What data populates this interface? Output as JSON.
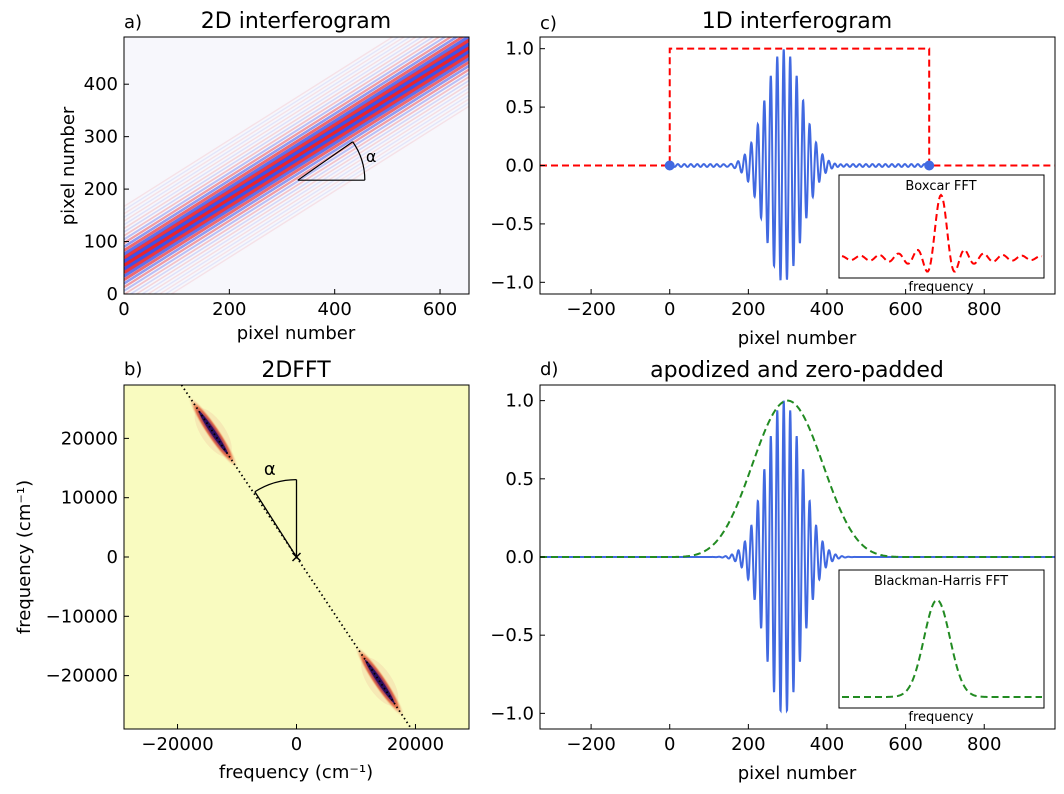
{
  "colors": {
    "signal": "#4169e1",
    "boxcar": "#ff0000",
    "apod": "#228b22",
    "fringe_red": "#e8232d",
    "fringe_blue": "#3c4ee6",
    "fft_bg": "#f9fbc0",
    "fft_peak": "#2a0e5e"
  },
  "chart_data": [
    {
      "panel_label": "a)",
      "type": "heatmap",
      "title": "2D interferogram",
      "xlabel": "pixel number",
      "ylabel": "pixel number",
      "xlim": [
        0,
        655
      ],
      "ylim": [
        0,
        490
      ],
      "xticks": [
        0,
        200,
        400,
        600
      ],
      "yticks": [
        0,
        100,
        200,
        300,
        400
      ],
      "fringe_band": {
        "x": [
          0,
          655
        ],
        "center_y": [
          55,
          470
        ]
      },
      "angle_label": "α",
      "angle_vertex": [
        330,
        217
      ]
    },
    {
      "panel_label": "c)",
      "type": "line",
      "title": "1D interferogram",
      "xlabel": "pixel number",
      "ylabel": "",
      "xlim": [
        -330,
        980
      ],
      "ylim": [
        -1.1,
        1.1
      ],
      "xticks": [
        -200,
        0,
        200,
        400,
        600,
        800
      ],
      "yticks": [
        -1.0,
        -0.5,
        0.0,
        0.5,
        1.0
      ],
      "series": [
        {
          "type": "line",
          "color": "signal",
          "x_range": [
            0,
            660
          ],
          "center": 290
        },
        {
          "type": "dashed-line",
          "color": "boxcar",
          "x": [
            -330,
            0,
            0,
            660,
            660,
            980
          ],
          "y": [
            0,
            0,
            1,
            1,
            0,
            0
          ]
        },
        {
          "type": "points",
          "color": "signal",
          "x": [
            0,
            660
          ],
          "y": [
            0,
            0
          ]
        }
      ],
      "inset": {
        "title": "Boxcar FFT",
        "xlabel": "frequency"
      }
    },
    {
      "panel_label": "b)",
      "type": "heatmap",
      "title": "2DFFT",
      "xlabel": "frequency (cm⁻¹)",
      "ylabel": "frequency (cm⁻¹)",
      "xlim": [
        -29000,
        29000
      ],
      "ylim": [
        -29000,
        29000
      ],
      "xticks": [
        -20000,
        0,
        20000
      ],
      "yticks": [
        -20000,
        -10000,
        0,
        10000,
        20000
      ],
      "xtick_labels": [
        "−20000",
        "0",
        "20000"
      ],
      "ytick_labels": [
        "−20000",
        "−10000",
        "0",
        "10000",
        "20000"
      ],
      "peaks": [
        [
          -14000,
          21000
        ],
        [
          14000,
          -21000
        ]
      ],
      "line_slope": -1.5,
      "angle_label": "α",
      "angle_tip": [
        -7000,
        11000
      ]
    },
    {
      "panel_label": "d)",
      "type": "line",
      "title": "apodized and zero-padded",
      "xlabel": "pixel number",
      "ylabel": "",
      "xlim": [
        -330,
        980
      ],
      "ylim": [
        -1.1,
        1.1
      ],
      "xticks": [
        -200,
        0,
        200,
        400,
        600,
        800
      ],
      "yticks": [
        -1.0,
        -0.5,
        0.0,
        0.5,
        1.0
      ],
      "series": [
        {
          "type": "line",
          "color": "signal",
          "x_range": [
            -330,
            980
          ],
          "center": 290
        },
        {
          "type": "dashed-line",
          "color": "apod",
          "window_range": [
            0,
            600
          ],
          "center": 300
        }
      ],
      "inset": {
        "title": "Blackman-Harris FFT",
        "xlabel": "frequency"
      }
    }
  ]
}
